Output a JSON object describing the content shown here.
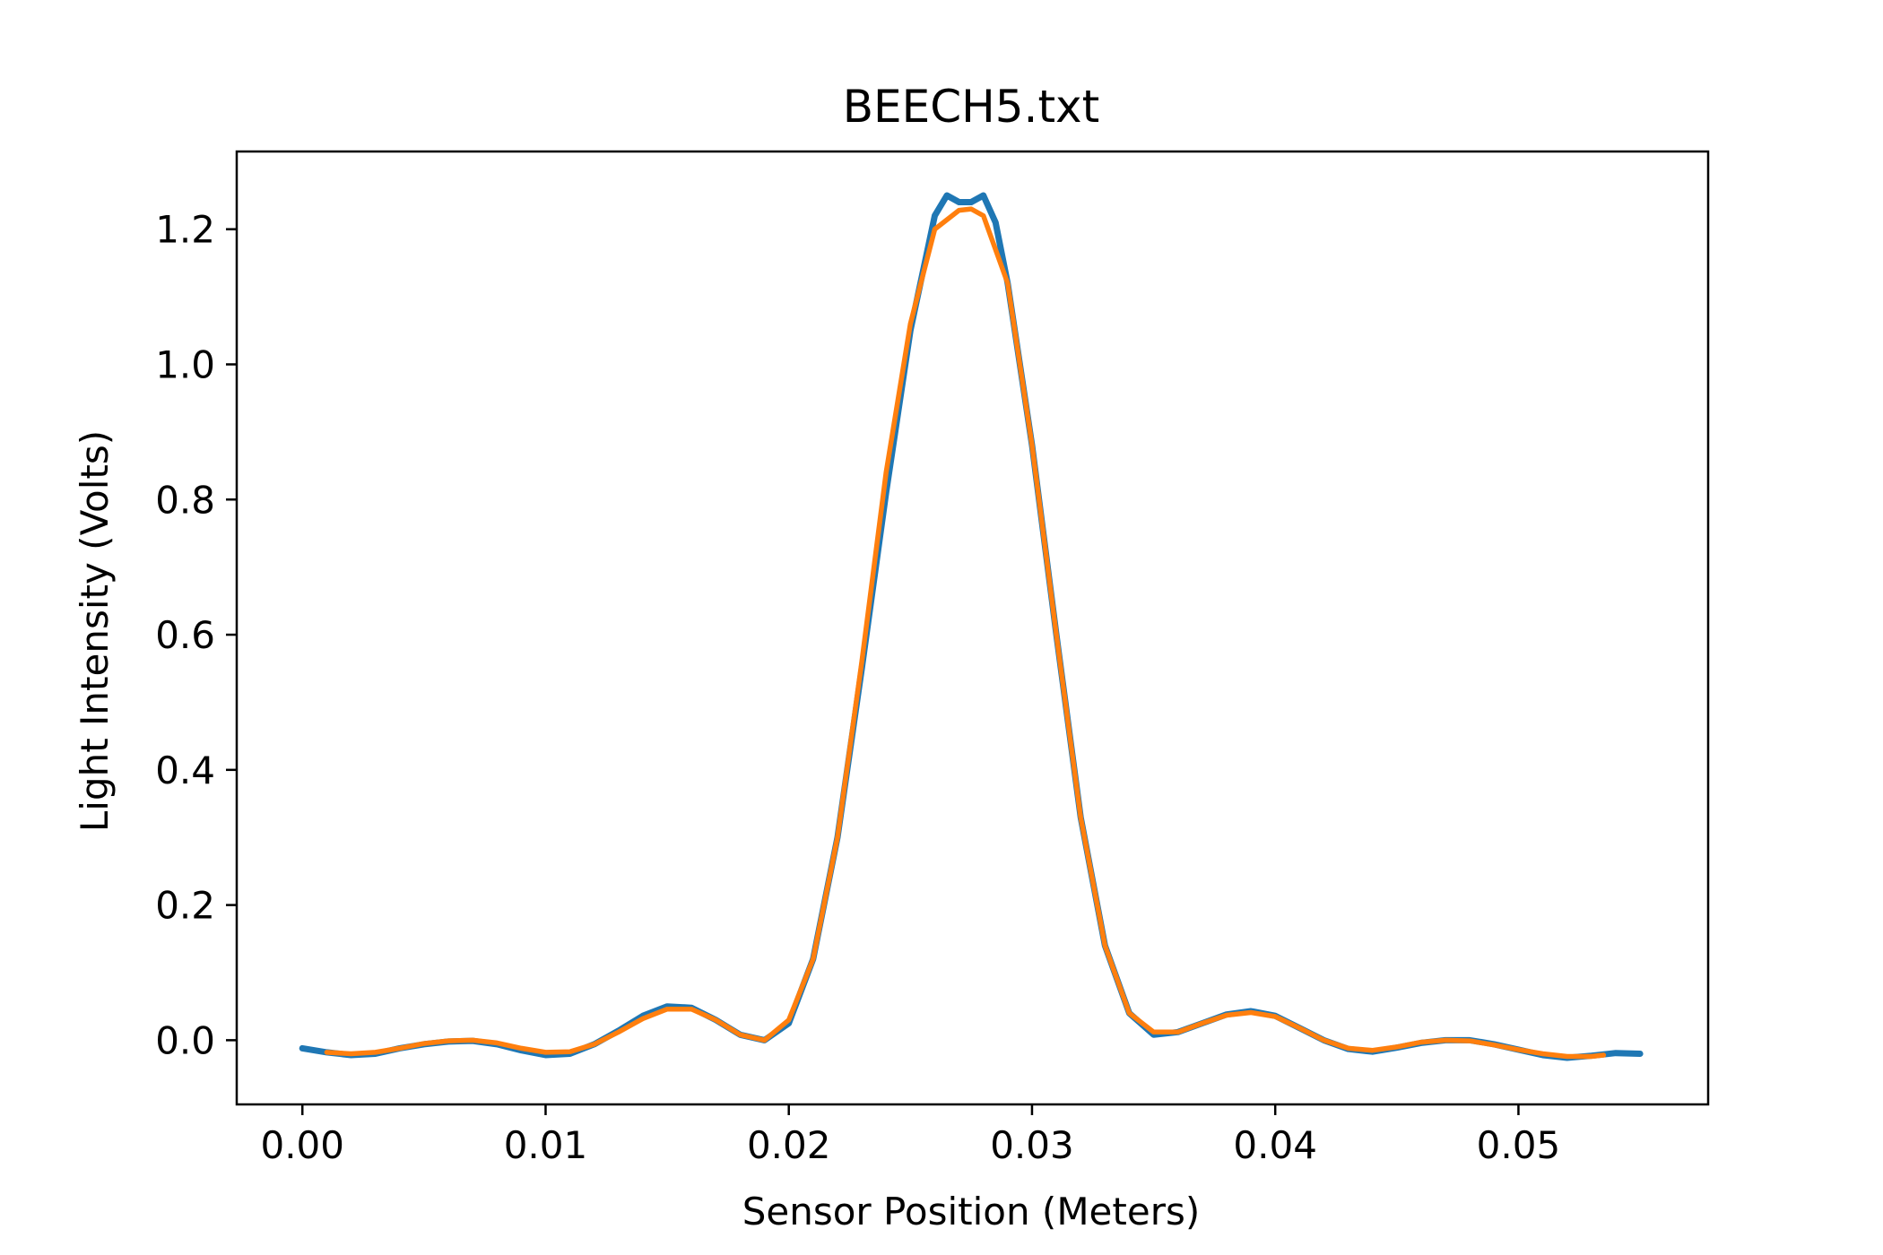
{
  "chart_data": {
    "type": "line",
    "title": "BEECH5.txt",
    "xlabel": "Sensor Position (Meters)",
    "ylabel": "Light Intensity (Volts)",
    "xlim": [
      -0.0027,
      0.0578
    ],
    "ylim": [
      -0.095,
      1.315
    ],
    "x_ticks": [
      0.0,
      0.01,
      0.02,
      0.03,
      0.04,
      0.05
    ],
    "x_tick_labels": [
      "0.00",
      "0.01",
      "0.02",
      "0.03",
      "0.04",
      "0.05"
    ],
    "y_ticks": [
      0.0,
      0.2,
      0.4,
      0.6,
      0.8,
      1.0,
      1.2
    ],
    "y_tick_labels": [
      "0.0",
      "0.2",
      "0.4",
      "0.6",
      "0.8",
      "1.0",
      "1.2"
    ],
    "grid": false,
    "legend": "none",
    "series": [
      {
        "color": "#1f77b4",
        "stroke": "measured",
        "x": [
          0.0,
          0.001,
          0.002,
          0.003,
          0.004,
          0.005,
          0.006,
          0.007,
          0.008,
          0.009,
          0.01,
          0.011,
          0.012,
          0.013,
          0.014,
          0.015,
          0.016,
          0.017,
          0.018,
          0.019,
          0.02,
          0.021,
          0.022,
          0.023,
          0.024,
          0.025,
          0.026,
          0.0265,
          0.027,
          0.0275,
          0.028,
          0.0285,
          0.029,
          0.03,
          0.031,
          0.032,
          0.033,
          0.034,
          0.035,
          0.036,
          0.037,
          0.038,
          0.039,
          0.04,
          0.041,
          0.042,
          0.043,
          0.044,
          0.045,
          0.046,
          0.047,
          0.048,
          0.049,
          0.05,
          0.051,
          0.052,
          0.053,
          0.054,
          0.055
        ],
        "y": [
          -0.012,
          -0.018,
          -0.022,
          -0.02,
          -0.012,
          -0.006,
          -0.002,
          -0.001,
          -0.006,
          -0.015,
          -0.022,
          -0.02,
          -0.006,
          0.014,
          0.036,
          0.05,
          0.048,
          0.03,
          0.008,
          0.0,
          0.025,
          0.12,
          0.3,
          0.55,
          0.81,
          1.05,
          1.22,
          1.25,
          1.24,
          1.24,
          1.25,
          1.21,
          1.12,
          0.88,
          0.6,
          0.33,
          0.14,
          0.04,
          0.008,
          0.012,
          0.025,
          0.038,
          0.043,
          0.036,
          0.018,
          0.0,
          -0.013,
          -0.017,
          -0.011,
          -0.004,
          0.0,
          0.0,
          -0.006,
          -0.014,
          -0.022,
          -0.026,
          -0.023,
          -0.019,
          -0.02
        ]
      },
      {
        "color": "#ff7f0e",
        "stroke": "fit",
        "x": [
          0.001,
          0.002,
          0.003,
          0.004,
          0.005,
          0.006,
          0.007,
          0.008,
          0.009,
          0.01,
          0.011,
          0.012,
          0.013,
          0.014,
          0.015,
          0.016,
          0.017,
          0.018,
          0.019,
          0.02,
          0.021,
          0.022,
          0.023,
          0.024,
          0.025,
          0.026,
          0.027,
          0.0275,
          0.028,
          0.029,
          0.03,
          0.031,
          0.032,
          0.033,
          0.034,
          0.035,
          0.036,
          0.037,
          0.038,
          0.039,
          0.04,
          0.041,
          0.042,
          0.043,
          0.044,
          0.045,
          0.046,
          0.047,
          0.048,
          0.049,
          0.05,
          0.051,
          0.052,
          0.053,
          0.0535
        ],
        "y": [
          -0.018,
          -0.02,
          -0.018,
          -0.012,
          -0.005,
          -0.001,
          0.0,
          -0.004,
          -0.012,
          -0.018,
          -0.017,
          -0.006,
          0.012,
          0.032,
          0.046,
          0.046,
          0.03,
          0.008,
          0.0,
          0.03,
          0.12,
          0.3,
          0.56,
          0.84,
          1.06,
          1.2,
          1.228,
          1.23,
          1.22,
          1.12,
          0.88,
          0.6,
          0.33,
          0.14,
          0.04,
          0.012,
          0.012,
          0.025,
          0.037,
          0.041,
          0.035,
          0.018,
          0.0,
          -0.012,
          -0.015,
          -0.01,
          -0.003,
          0.0,
          -0.001,
          -0.007,
          -0.014,
          -0.02,
          -0.024,
          -0.024,
          -0.022
        ]
      }
    ]
  }
}
